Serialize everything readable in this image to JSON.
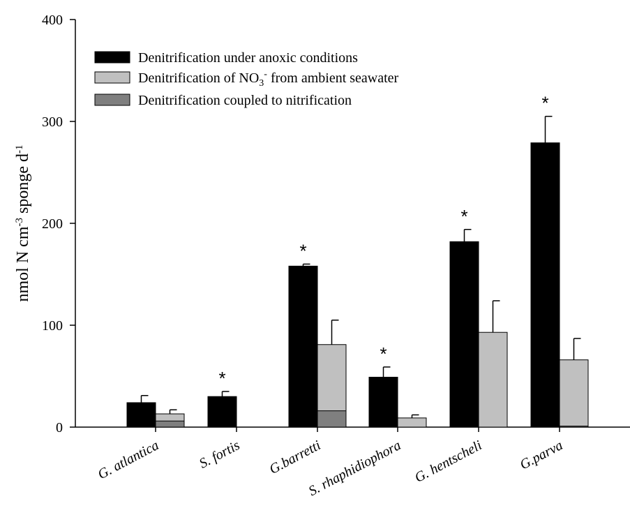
{
  "chart_data": {
    "type": "bar",
    "ylabel_parts": [
      "nmol N cm",
      "-3",
      " sponge d",
      "-1"
    ],
    "ylim": [
      0,
      400
    ],
    "yticks": [
      0,
      100,
      200,
      300,
      400
    ],
    "categories": [
      "G. atlantica",
      "S. fortis",
      "G.barretti",
      "S. rhaphidiophora",
      "G. hentscheli",
      "G.parva"
    ],
    "legend": {
      "position": "top-left",
      "items": [
        {
          "key": "anoxic",
          "label_parts": [
            "Denitrification under anoxic conditions"
          ],
          "color": "#000000"
        },
        {
          "key": "ambient",
          "label_parts": [
            "Denitrification of NO",
            "3",
            "-",
            " from ambient seawater"
          ],
          "color": "#c0c0c0"
        },
        {
          "key": "coupled",
          "label_parts": [
            "Denitrification coupled to nitrification"
          ],
          "color": "#7f7f7f"
        }
      ]
    },
    "series": [
      {
        "key": "anoxic",
        "color": "#000000",
        "values": [
          24,
          30,
          158,
          49,
          182,
          279
        ],
        "errors": [
          7,
          5,
          2,
          10,
          12,
          26
        ]
      },
      {
        "key": "ambient",
        "color": "#c0c0c0",
        "values": [
          13,
          null,
          81,
          9,
          93,
          66
        ],
        "errors": [
          4,
          null,
          24,
          3,
          31,
          21
        ]
      },
      {
        "key": "coupled",
        "color": "#7f7f7f",
        "values": [
          6,
          null,
          16,
          0,
          0,
          1
        ],
        "errors": [
          null,
          null,
          null,
          null,
          null,
          null
        ]
      }
    ],
    "significance_marker": "*",
    "significant": [
      false,
      true,
      true,
      true,
      true,
      true
    ],
    "grid": false
  }
}
